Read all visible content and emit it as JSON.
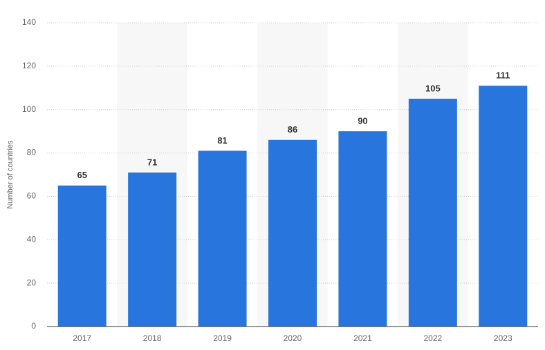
{
  "chart_data": {
    "type": "bar",
    "y_label": "Number of countries",
    "categories": [
      "2017",
      "2018",
      "2019",
      "2020",
      "2021",
      "2022",
      "2023"
    ],
    "values": [
      65,
      71,
      81,
      86,
      90,
      105,
      111
    ],
    "color": "#2876dd",
    "ylim": [
      0,
      140
    ],
    "yticks": [
      0,
      20,
      40,
      60,
      80,
      100,
      120,
      140
    ],
    "grid": true
  }
}
